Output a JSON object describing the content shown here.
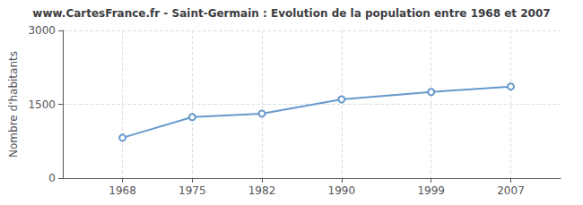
{
  "chart_data": {
    "type": "line",
    "title": "www.CartesFrance.fr - Saint-Germain : Evolution de la population entre 1968 et 2007",
    "ylabel": "Nombre d'habitants",
    "x": [
      1968,
      1975,
      1982,
      1990,
      1999,
      2007
    ],
    "values": [
      820,
      1240,
      1310,
      1600,
      1750,
      1860
    ],
    "xlim": [
      1962,
      2012
    ],
    "xticks": [
      1968,
      1975,
      1982,
      1990,
      1999,
      2007
    ],
    "ylim": [
      0,
      3000
    ],
    "yticks": [
      0,
      1500,
      3000
    ],
    "color": "#6699cc",
    "marker": "circle",
    "grid": true
  }
}
